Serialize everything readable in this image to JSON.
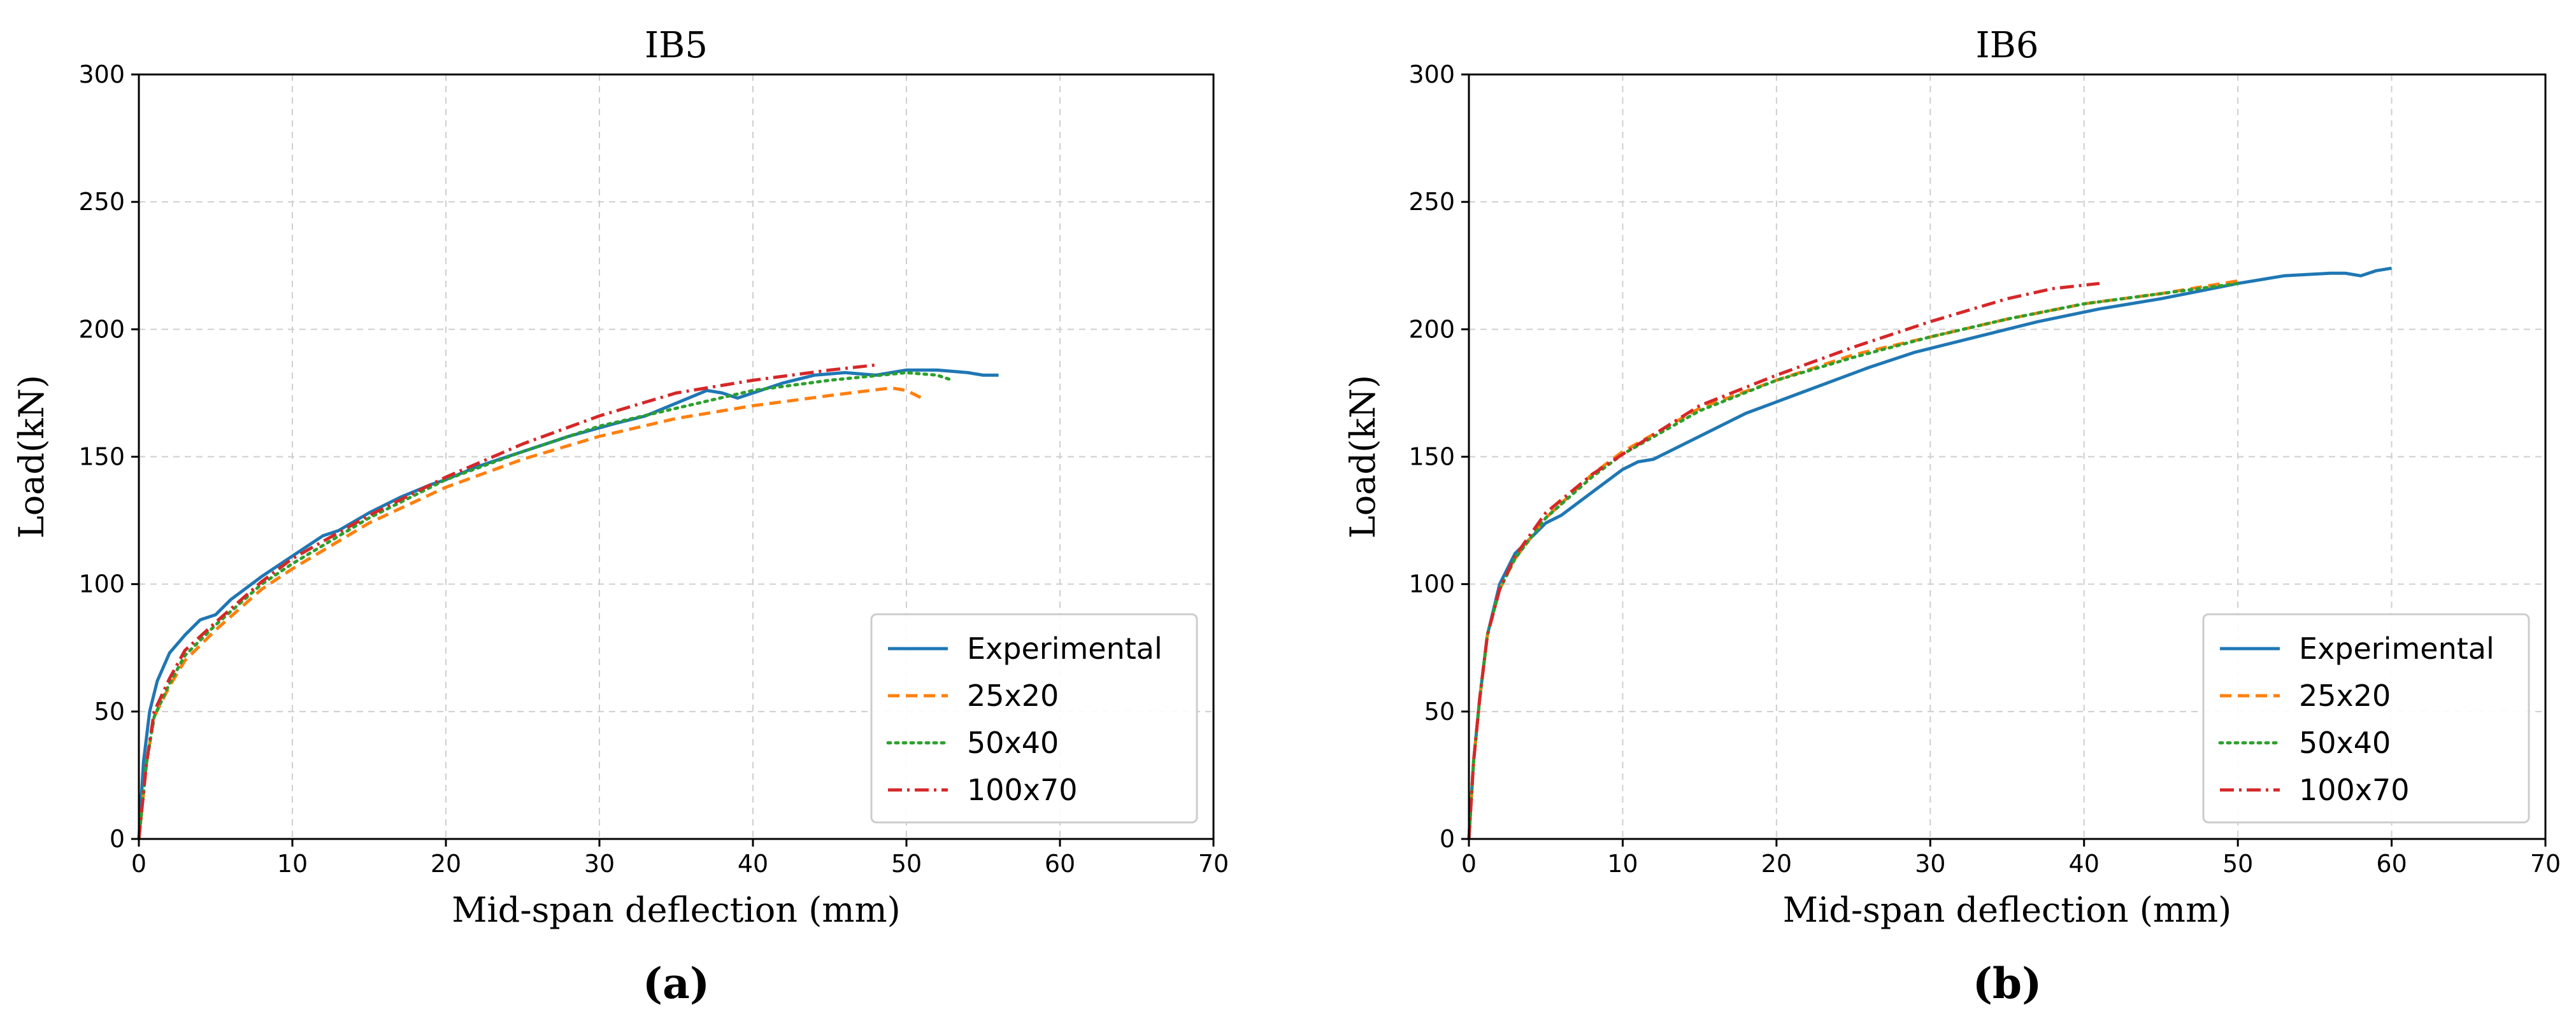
{
  "chart_data": [
    {
      "type": "line",
      "title": "IB5",
      "caption": "(a)",
      "xlabel": "Mid-span deflection (mm)",
      "ylabel": "Load(kN)",
      "xlim": [
        0,
        70
      ],
      "ylim": [
        0,
        300
      ],
      "xticks": [
        0,
        10,
        20,
        30,
        40,
        50,
        60,
        70
      ],
      "yticks": [
        0,
        50,
        100,
        150,
        200,
        250,
        300
      ],
      "grid": true,
      "legend_position": "lower-right",
      "series": [
        {
          "name": "Experimental",
          "color": "#1f77b4",
          "style": "solid",
          "x": [
            0,
            0.3,
            0.7,
            1.2,
            2,
            3,
            4,
            5,
            6,
            8,
            10,
            12,
            13,
            15,
            17,
            19,
            20,
            22,
            25,
            28,
            31,
            33,
            35,
            37,
            38,
            39,
            40,
            42,
            44,
            46,
            48,
            50,
            52,
            54,
            55,
            56
          ],
          "y": [
            0,
            30,
            50,
            62,
            73,
            80,
            86,
            88,
            94,
            103,
            111,
            119,
            121,
            128,
            134,
            139,
            141,
            146,
            152,
            158,
            163,
            166,
            171,
            176,
            175,
            173,
            175,
            179,
            182,
            183,
            182,
            184,
            184,
            183,
            182,
            182
          ]
        },
        {
          "name": "25x20",
          "color": "#ff7f0e",
          "style": "dashed",
          "x": [
            0,
            0.5,
            1,
            2,
            3,
            5,
            8,
            10,
            15,
            20,
            25,
            30,
            35,
            40,
            45,
            49,
            50,
            51
          ],
          "y": [
            0,
            30,
            48,
            60,
            70,
            82,
            98,
            106,
            124,
            138,
            149,
            158,
            165,
            170,
            174,
            177,
            176,
            173
          ]
        },
        {
          "name": "50x40",
          "color": "#2ca02c",
          "style": "dotted",
          "x": [
            0,
            0.5,
            1,
            2,
            3,
            5,
            8,
            10,
            15,
            20,
            25,
            30,
            35,
            40,
            45,
            50,
            52,
            53
          ],
          "y": [
            0,
            30,
            48,
            61,
            72,
            84,
            100,
            108,
            126,
            141,
            152,
            162,
            169,
            176,
            180,
            183,
            182,
            180
          ]
        },
        {
          "name": "100x70",
          "color": "#d62728",
          "style": "dashdot",
          "x": [
            0,
            0.5,
            1,
            2,
            3,
            5,
            8,
            10,
            15,
            20,
            25,
            30,
            35,
            40,
            45,
            48
          ],
          "y": [
            0,
            30,
            50,
            63,
            74,
            85,
            101,
            110,
            127,
            142,
            155,
            166,
            175,
            180,
            184,
            186
          ]
        }
      ]
    },
    {
      "type": "line",
      "title": "IB6",
      "caption": "(b)",
      "xlabel": "Mid-span deflection (mm)",
      "ylabel": "Load(kN)",
      "xlim": [
        0,
        70
      ],
      "ylim": [
        0,
        300
      ],
      "xticks": [
        0,
        10,
        20,
        30,
        40,
        50,
        60,
        70
      ],
      "yticks": [
        0,
        50,
        100,
        150,
        200,
        250,
        300
      ],
      "grid": true,
      "legend_position": "lower-right",
      "series": [
        {
          "name": "Experimental",
          "color": "#1f77b4",
          "style": "solid",
          "x": [
            0,
            0.3,
            0.7,
            1.2,
            2,
            3,
            4,
            5,
            6,
            8,
            10,
            11,
            12,
            14,
            18,
            22,
            26,
            29,
            33,
            37,
            41,
            45,
            50,
            53,
            56,
            57,
            58,
            59,
            60
          ],
          "y": [
            0,
            30,
            55,
            80,
            100,
            112,
            118,
            124,
            127,
            136,
            145,
            148,
            149,
            155,
            167,
            176,
            185,
            191,
            197,
            203,
            208,
            212,
            218,
            221,
            222,
            222,
            221,
            223,
            224
          ]
        },
        {
          "name": "25x20",
          "color": "#ff7f0e",
          "style": "dashed",
          "x": [
            0,
            0.3,
            0.7,
            1.2,
            2,
            3,
            5,
            8,
            10,
            15,
            20,
            25,
            30,
            35,
            40,
            45,
            50
          ],
          "y": [
            0,
            30,
            55,
            80,
            98,
            110,
            126,
            143,
            152,
            169,
            180,
            190,
            197,
            204,
            210,
            214,
            219
          ]
        },
        {
          "name": "50x40",
          "color": "#2ca02c",
          "style": "dotted",
          "x": [
            0,
            0.3,
            0.7,
            1.2,
            2,
            3,
            5,
            8,
            10,
            15,
            20,
            25,
            30,
            35,
            40,
            45,
            50
          ],
          "y": [
            0,
            30,
            55,
            80,
            98,
            110,
            126,
            142,
            151,
            168,
            180,
            189,
            197,
            204,
            210,
            214,
            218
          ]
        },
        {
          "name": "100x70",
          "color": "#d62728",
          "style": "dashdot",
          "x": [
            0,
            0.3,
            0.7,
            1.2,
            2,
            3,
            5,
            8,
            10,
            15,
            20,
            25,
            30,
            35,
            38,
            41
          ],
          "y": [
            0,
            30,
            55,
            80,
            98,
            111,
            128,
            143,
            151,
            170,
            182,
            193,
            203,
            212,
            216,
            218
          ]
        }
      ]
    }
  ]
}
